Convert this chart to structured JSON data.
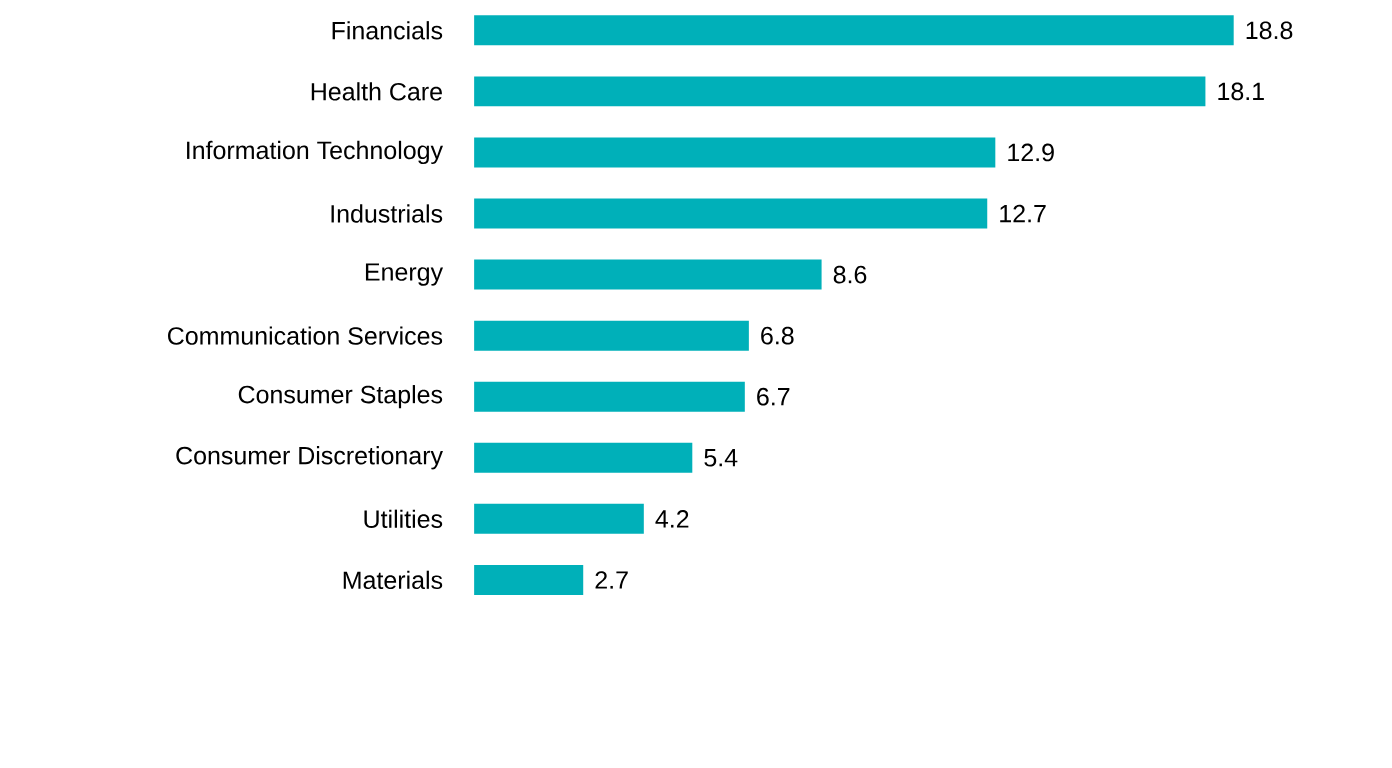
{
  "chart_data": {
    "type": "bar",
    "orientation": "horizontal",
    "data_labels": true,
    "color": "#00b0b9",
    "categories": [
      "Financials",
      "Health Care",
      "Information Technology",
      "Industrials",
      "Energy",
      "Communication Services",
      "Consumer Staples",
      "Consumer Discretionary",
      "Utilities",
      "Materials"
    ],
    "values": [
      18.8,
      18.1,
      12.9,
      12.7,
      8.6,
      6.8,
      6.7,
      5.4,
      4.2,
      2.7
    ]
  }
}
